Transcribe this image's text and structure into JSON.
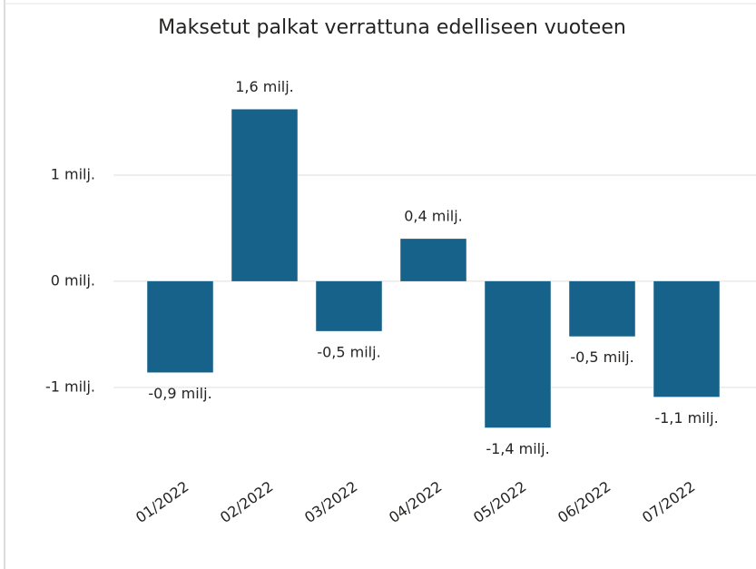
{
  "chart_data": {
    "type": "bar",
    "title": "Maksetut palkat verrattuna edelliseen vuoteen",
    "categories": [
      "01/2022",
      "02/2022",
      "03/2022",
      "04/2022",
      "05/2022",
      "06/2022",
      "07/2022"
    ],
    "values": [
      -0.86,
      1.62,
      -0.47,
      0.4,
      -1.38,
      -0.52,
      -1.09
    ],
    "value_labels": [
      "-0,9 milj.",
      "1,6 milj.",
      "-0,5 milj.",
      "0,4 milj.",
      "-1,4 milj.",
      "-0,5 milj.",
      "-1,1 milj."
    ],
    "color": "#17628a",
    "ylim": [
      -1.6,
      2.0
    ],
    "yticks": [
      {
        "value": -1,
        "label": "-1 milj."
      },
      {
        "value": 0,
        "label": "0 milj."
      },
      {
        "value": 1,
        "label": "1 milj."
      }
    ],
    "grid": true
  }
}
